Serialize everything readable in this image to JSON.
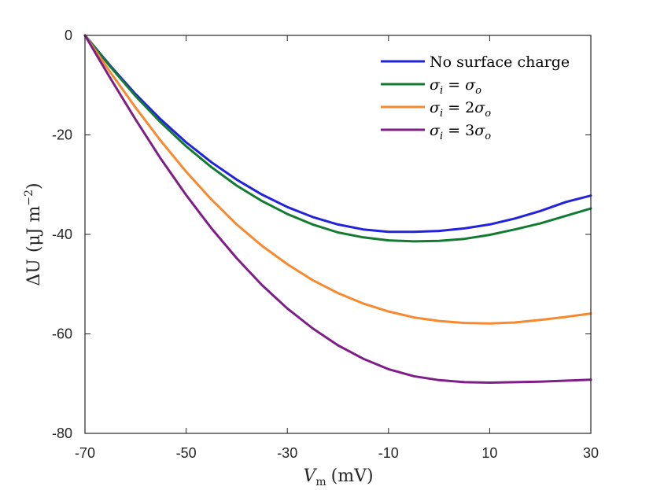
{
  "chart_data": {
    "type": "line",
    "title": "",
    "xlabel": "V_m (mV)",
    "xlabel_main": "V",
    "xlabel_sub": "m",
    "xlabel_unit": "(mV)",
    "ylabel": "ΔU (μJ m^-2)",
    "ylabel_main": "ΔU",
    "ylabel_unit_open": "(μJ m",
    "ylabel_sup": "−2",
    "ylabel_unit_close": ")",
    "xlim": [
      -70,
      30
    ],
    "ylim": [
      -80,
      0
    ],
    "xticks": [
      -70,
      -50,
      -30,
      -10,
      10,
      30
    ],
    "yticks": [
      0,
      -20,
      -40,
      -60,
      -80
    ],
    "xtick_labels": [
      "-70",
      "-50",
      "-30",
      "-10",
      "10",
      "30"
    ],
    "ytick_labels": [
      "0",
      "-20",
      "-40",
      "-60",
      "-80"
    ],
    "grid": false,
    "legend_position": "top-right",
    "series": [
      {
        "name": "No surface charge",
        "color": "#2222dd",
        "x": [
          -70,
          -65,
          -60,
          -55,
          -50,
          -45,
          -40,
          -35,
          -30,
          -25,
          -20,
          -15,
          -10,
          -5,
          0,
          5,
          10,
          15,
          20,
          25,
          30
        ],
        "y": [
          0,
          -6.1,
          -11.8,
          -16.9,
          -21.5,
          -25.5,
          -29.0,
          -32.0,
          -34.5,
          -36.5,
          -38.0,
          -39.0,
          -39.5,
          -39.5,
          -39.3,
          -38.8,
          -38.0,
          -36.8,
          -35.3,
          -33.5,
          -32.2
        ]
      },
      {
        "name": "σi = σo",
        "label_parts": [
          "σ",
          "i",
          " = ",
          "σ",
          "o"
        ],
        "color": "#137a32",
        "x": [
          -70,
          -65,
          -60,
          -55,
          -50,
          -45,
          -40,
          -35,
          -30,
          -25,
          -20,
          -15,
          -10,
          -5,
          0,
          5,
          10,
          15,
          20,
          25,
          30
        ],
        "y": [
          0,
          -6.3,
          -12.2,
          -17.5,
          -22.3,
          -26.5,
          -30.2,
          -33.3,
          -35.9,
          -38.0,
          -39.6,
          -40.6,
          -41.2,
          -41.4,
          -41.3,
          -40.9,
          -40.1,
          -39.0,
          -37.8,
          -36.3,
          -34.8
        ]
      },
      {
        "name": "σi = 2σo",
        "label_parts": [
          "σ",
          "i",
          " = 2",
          "σ",
          "o"
        ],
        "color": "#f7892e",
        "x": [
          -70,
          -65,
          -60,
          -55,
          -50,
          -45,
          -40,
          -35,
          -30,
          -25,
          -20,
          -15,
          -10,
          -5,
          0,
          5,
          10,
          15,
          20,
          25,
          30
        ],
        "y": [
          0,
          -7.4,
          -14.5,
          -21.2,
          -27.4,
          -33.0,
          -38.0,
          -42.3,
          -46.0,
          -49.2,
          -51.8,
          -53.9,
          -55.5,
          -56.7,
          -57.4,
          -57.8,
          -57.9,
          -57.7,
          -57.2,
          -56.6,
          -55.9
        ]
      },
      {
        "name": "σi = 3σo",
        "label_parts": [
          "σ",
          "i",
          " = 3",
          "σ",
          "o"
        ],
        "color": "#7e1e87",
        "x": [
          -70,
          -65,
          -60,
          -55,
          -50,
          -45,
          -40,
          -35,
          -30,
          -25,
          -20,
          -15,
          -10,
          -5,
          0,
          5,
          10,
          15,
          20,
          25,
          30
        ],
        "y": [
          0,
          -8.6,
          -16.9,
          -24.8,
          -32.1,
          -38.8,
          -44.8,
          -50.2,
          -54.9,
          -58.9,
          -62.3,
          -65.0,
          -67.1,
          -68.5,
          -69.3,
          -69.7,
          -69.8,
          -69.7,
          -69.6,
          -69.4,
          -69.2
        ]
      }
    ]
  }
}
